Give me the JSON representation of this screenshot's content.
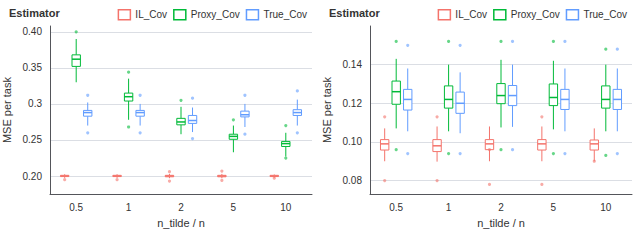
{
  "chart_data": [
    {
      "type": "box",
      "xlabel": "n_tilde / n",
      "ylabel": "MSE per task",
      "categories": [
        "0.5",
        "1",
        "2",
        "5",
        "10"
      ],
      "ylim": [
        0.175,
        0.408
      ],
      "yticks": [
        {
          "value": 0.2,
          "label": "0.20"
        },
        0.25,
        0.3,
        0.35,
        {
          "value": 0.4,
          "label": "0.40"
        }
      ],
      "grid": true,
      "legend": "upper right",
      "legend_title": "Estimator",
      "series": [
        {
          "name": "IL_Cov",
          "color": "#F4736B",
          "medians": [
            0.2,
            0.2,
            0.2,
            0.2,
            0.2
          ],
          "q1": [
            0.1993,
            0.1993,
            0.199,
            0.199,
            0.1993
          ],
          "q3": [
            0.201,
            0.201,
            0.201,
            0.201,
            0.201
          ],
          "whislo": [
            0.1975,
            0.1975,
            0.197,
            0.197,
            0.1978
          ],
          "whishi": [
            0.2025,
            0.2025,
            0.203,
            0.203,
            0.2022
          ],
          "fliers": [
            [
              0.195
            ],
            [
              0.195
            ],
            [
              0.193,
              0.206
            ],
            [
              0.194,
              0.207
            ],
            [
              0.197
            ]
          ]
        },
        {
          "name": "Proxy_Cov",
          "color": "#00BA38",
          "medians": [
            0.362,
            0.31,
            0.275,
            0.255,
            0.245
          ],
          "q1": [
            0.352,
            0.304,
            0.271,
            0.251,
            0.241
          ],
          "q3": [
            0.368,
            0.315,
            0.28,
            0.258,
            0.248
          ],
          "whislo": [
            0.33,
            0.278,
            0.258,
            0.233,
            0.227
          ],
          "whishi": [
            0.39,
            0.335,
            0.296,
            0.27,
            0.26
          ],
          "fliers": [
            [
              0.4
            ],
            [
              0.344,
              0.268
            ],
            [
              0.305
            ],
            [
              0.278
            ],
            [
              0.27,
              0.225
            ]
          ]
        },
        {
          "name": "True_Cov",
          "color": "#619CFF",
          "medians": [
            0.288,
            0.288,
            0.277,
            0.285,
            0.288
          ],
          "q1": [
            0.283,
            0.283,
            0.273,
            0.282,
            0.284
          ],
          "q3": [
            0.291,
            0.291,
            0.284,
            0.29,
            0.292
          ],
          "whislo": [
            0.27,
            0.27,
            0.261,
            0.268,
            0.27
          ],
          "whishi": [
            0.302,
            0.3,
            0.295,
            0.3,
            0.306
          ],
          "fliers": [
            [
              0.26,
              0.312
            ],
            [
              0.26,
              0.312
            ],
            [
              0.252,
              0.308
            ],
            [
              0.258,
              0.312
            ],
            [
              0.26,
              0.318
            ]
          ]
        }
      ]
    },
    {
      "type": "box",
      "xlabel": "n_tilde / n",
      "ylabel": "MSE per task",
      "categories": [
        "0.5",
        "1",
        "2",
        "5",
        "10"
      ],
      "ylim": [
        0.073,
        0.16
      ],
      "yticks": [
        0.08,
        {
          "value": 0.1,
          "label": "0.10"
        },
        0.12,
        0.14
      ],
      "grid": true,
      "legend": "upper right",
      "legend_title": "Estimator",
      "series": [
        {
          "name": "IL_Cov",
          "color": "#F4736B",
          "medians": [
            0.099,
            0.098,
            0.099,
            0.099,
            0.099
          ],
          "q1": [
            0.0958,
            0.095,
            0.096,
            0.0958,
            0.0958
          ],
          "q3": [
            0.1012,
            0.1012,
            0.1012,
            0.1012,
            0.101
          ],
          "whislo": [
            0.09,
            0.0898,
            0.09,
            0.09,
            0.09
          ],
          "whishi": [
            0.107,
            0.108,
            0.108,
            0.108,
            0.107
          ],
          "fliers": [
            [
              0.113,
              0.08
            ],
            [
              0.113,
              0.08
            ],
            [
              0.096,
              0.078
            ],
            [
              0.113,
              0.078
            ],
            [
              0.09
            ]
          ]
        },
        {
          "name": "Proxy_Cov",
          "color": "#00BA38",
          "medians": [
            0.126,
            0.122,
            0.124,
            0.123,
            0.122
          ],
          "q1": [
            0.1195,
            0.1175,
            0.1198,
            0.1188,
            0.1175
          ],
          "q3": [
            0.1315,
            0.129,
            0.1302,
            0.13,
            0.129
          ],
          "whislo": [
            0.107,
            0.1055,
            0.1075,
            0.1065,
            0.1055
          ],
          "whishi": [
            0.143,
            0.14,
            0.1425,
            0.142,
            0.14
          ],
          "fliers": [
            [
              0.152,
              0.096
            ],
            [
              0.152,
              0.094
            ],
            [
              0.152,
              0.096
            ],
            [
              0.152,
              0.094
            ],
            [
              0.148,
              0.093
            ]
          ]
        },
        {
          "name": "True_Cov",
          "color": "#619CFF",
          "medians": [
            0.122,
            0.12,
            0.124,
            0.122,
            0.122
          ],
          "q1": [
            0.1165,
            0.1148,
            0.1188,
            0.1168,
            0.1168
          ],
          "q3": [
            0.1272,
            0.1258,
            0.1292,
            0.1272,
            0.1272
          ],
          "whislo": [
            0.1055,
            0.1045,
            0.1078,
            0.1055,
            0.1055
          ],
          "whishi": [
            0.138,
            0.136,
            0.14,
            0.138,
            0.138
          ],
          "fliers": [
            [
              0.15,
              0.094
            ],
            [
              0.15,
              0.094
            ],
            [
              0.152,
              0.096
            ],
            [
              0.152,
              0.094
            ],
            [
              0.148,
              0.094
            ]
          ]
        }
      ]
    }
  ]
}
